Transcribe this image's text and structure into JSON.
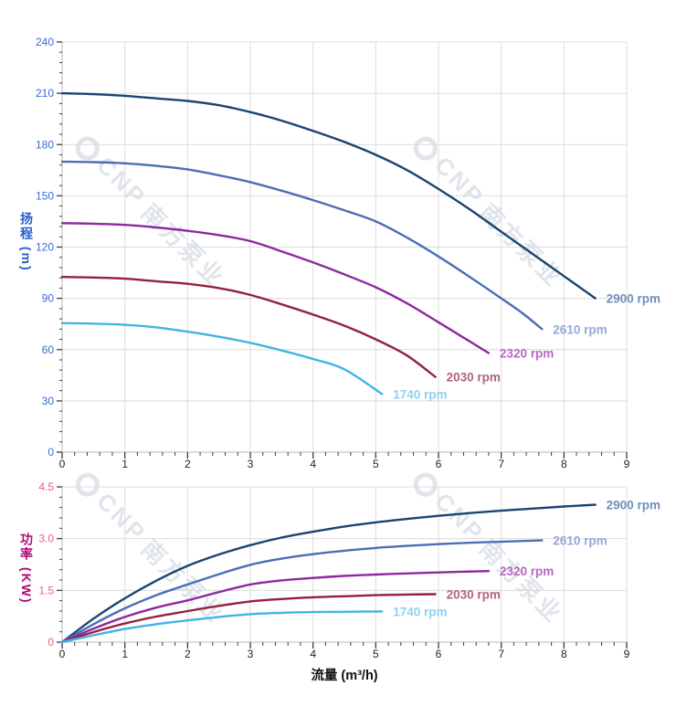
{
  "watermark": {
    "brand": "CNP",
    "brand_cn": "南方泵业",
    "color": "#c7d0dd"
  },
  "chart_data": [
    {
      "type": "line",
      "name": "head-flow-curve",
      "title": "",
      "xlabel": "",
      "ylabel": "扬程 (m)",
      "xlim": [
        0,
        9
      ],
      "ylim": [
        0,
        240
      ],
      "grid": true,
      "legend_position": "curve-end-labels",
      "x_tick_values": [
        0,
        1,
        2,
        3,
        4,
        5,
        6,
        7,
        8,
        9
      ],
      "x_tick_labels": [
        "0",
        "1",
        "2",
        "3",
        "4",
        "5",
        "6",
        "7",
        "8",
        "9"
      ],
      "y_tick_values": [
        0,
        30,
        60,
        90,
        120,
        150,
        180,
        210,
        240
      ],
      "y_tick_labels": [
        "0",
        "30",
        "60",
        "90",
        "120",
        "150",
        "180",
        "210",
        "240"
      ],
      "x_minor_step": 0.2,
      "y_minor_step": 6,
      "xtick_color": "#222222",
      "ytick_color": "#3d68d4",
      "ylabel_color": "#2b5ccc",
      "series": [
        {
          "name": "2900 rpm",
          "color": "#1a4570",
          "label_color": "#6f8fba",
          "points": [
            [
              0,
              210
            ],
            [
              0.5,
              209.5
            ],
            [
              1,
              208.5
            ],
            [
              1.5,
              207
            ],
            [
              2,
              205.5
            ],
            [
              2.5,
              203
            ],
            [
              3,
              199
            ],
            [
              3.5,
              194
            ],
            [
              4,
              188
            ],
            [
              4.5,
              181.5
            ],
            [
              5,
              174
            ],
            [
              5.5,
              165
            ],
            [
              6,
              154
            ],
            [
              6.5,
              142
            ],
            [
              7,
              129
            ],
            [
              7.5,
              116
            ],
            [
              8,
              103
            ],
            [
              8.5,
              90
            ]
          ]
        },
        {
          "name": "2610 rpm",
          "color": "#4b6eb5",
          "label_color": "#94a9d6",
          "points": [
            [
              0,
              170
            ],
            [
              0.5,
              169.7
            ],
            [
              1,
              169
            ],
            [
              1.5,
              167.5
            ],
            [
              2,
              165.5
            ],
            [
              2.5,
              162
            ],
            [
              3,
              158
            ],
            [
              3.5,
              153
            ],
            [
              4,
              147.5
            ],
            [
              4.5,
              141.5
            ],
            [
              5,
              135
            ],
            [
              5.5,
              125.5
            ],
            [
              6,
              114.5
            ],
            [
              6.5,
              102.5
            ],
            [
              7,
              90
            ],
            [
              7.35,
              81
            ],
            [
              7.65,
              72
            ]
          ]
        },
        {
          "name": "2320 rpm",
          "color": "#8f28a0",
          "label_color": "#b767c2",
          "points": [
            [
              0,
              134
            ],
            [
              0.5,
              133.7
            ],
            [
              1,
              133
            ],
            [
              1.5,
              131.5
            ],
            [
              2,
              129.5
            ],
            [
              2.5,
              127
            ],
            [
              3,
              123.5
            ],
            [
              3.5,
              117.5
            ],
            [
              4,
              111
            ],
            [
              4.5,
              104
            ],
            [
              5,
              96.5
            ],
            [
              5.5,
              87
            ],
            [
              6,
              76
            ],
            [
              6.4,
              67
            ],
            [
              6.8,
              58
            ]
          ]
        },
        {
          "name": "2030 rpm",
          "color": "#962040",
          "label_color": "#b16476",
          "points": [
            [
              0,
              102.5
            ],
            [
              0.5,
              102.2
            ],
            [
              1,
              101.5
            ],
            [
              1.5,
              100
            ],
            [
              2,
              98.5
            ],
            [
              2.5,
              96
            ],
            [
              3,
              92
            ],
            [
              3.5,
              86.5
            ],
            [
              4,
              80.5
            ],
            [
              4.5,
              74
            ],
            [
              5,
              66
            ],
            [
              5.5,
              56.5
            ],
            [
              5.95,
              44
            ]
          ]
        },
        {
          "name": "1740 rpm",
          "color": "#41b4e4",
          "label_color": "#8ed1f0",
          "points": [
            [
              0,
              75.5
            ],
            [
              0.5,
              75.2
            ],
            [
              1,
              74.5
            ],
            [
              1.5,
              73
            ],
            [
              2,
              70.5
            ],
            [
              2.5,
              67.5
            ],
            [
              3,
              64
            ],
            [
              3.5,
              59.5
            ],
            [
              4,
              54.5
            ],
            [
              4.5,
              48.5
            ],
            [
              5.1,
              34
            ]
          ]
        }
      ]
    },
    {
      "type": "line",
      "name": "power-flow-curve",
      "title": "",
      "xlabel": "流量 (m³/h)",
      "ylabel": "功率 (KW)",
      "xlim": [
        0,
        9
      ],
      "ylim": [
        0,
        4.5
      ],
      "grid": true,
      "legend_position": "curve-end-labels",
      "x_tick_values": [
        0,
        1,
        2,
        3,
        4,
        5,
        6,
        7,
        8,
        9
      ],
      "x_tick_labels": [
        "0",
        "1",
        "2",
        "3",
        "4",
        "5",
        "6",
        "7",
        "8",
        "9"
      ],
      "y_tick_values": [
        0,
        1.5,
        3.0,
        4.5
      ],
      "y_tick_labels": [
        "0",
        "1.5",
        "3.0",
        "4.5"
      ],
      "x_minor_step": 0.2,
      "y_minor_step": 0.3,
      "xtick_color": "#222222",
      "ytick_color": "#e75a8b",
      "ylabel_color": "#ad0c77",
      "xlabel_color": "#111111",
      "series": [
        {
          "name": "2900 rpm",
          "color": "#1a4570",
          "label_color": "#6f8fba",
          "points": [
            [
              0,
              0
            ],
            [
              0.5,
              0.68
            ],
            [
              1,
              1.27
            ],
            [
              1.5,
              1.78
            ],
            [
              2,
              2.21
            ],
            [
              2.5,
              2.54
            ],
            [
              3,
              2.81
            ],
            [
              3.5,
              3.03
            ],
            [
              4,
              3.2
            ],
            [
              4.5,
              3.35
            ],
            [
              5,
              3.47
            ],
            [
              5.5,
              3.57
            ],
            [
              6,
              3.66
            ],
            [
              6.5,
              3.74
            ],
            [
              7,
              3.81
            ],
            [
              7.5,
              3.87
            ],
            [
              8,
              3.93
            ],
            [
              8.5,
              3.98
            ]
          ]
        },
        {
          "name": "2610 rpm",
          "color": "#4b6eb5",
          "label_color": "#94a9d6",
          "points": [
            [
              0,
              0
            ],
            [
              0.5,
              0.52
            ],
            [
              1,
              0.98
            ],
            [
              1.5,
              1.36
            ],
            [
              2,
              1.67
            ],
            [
              2.5,
              1.97
            ],
            [
              3,
              2.24
            ],
            [
              3.5,
              2.42
            ],
            [
              4,
              2.55
            ],
            [
              4.5,
              2.65
            ],
            [
              5,
              2.73
            ],
            [
              5.5,
              2.79
            ],
            [
              6,
              2.84
            ],
            [
              6.5,
              2.88
            ],
            [
              7,
              2.91
            ],
            [
              7.65,
              2.95
            ]
          ]
        },
        {
          "name": "2320 rpm",
          "color": "#8f28a0",
          "label_color": "#b767c2",
          "points": [
            [
              0,
              0
            ],
            [
              0.5,
              0.39
            ],
            [
              1,
              0.73
            ],
            [
              1.5,
              1.0
            ],
            [
              2,
              1.21
            ],
            [
              2.5,
              1.45
            ],
            [
              3,
              1.67
            ],
            [
              3.5,
              1.79
            ],
            [
              4,
              1.86
            ],
            [
              4.5,
              1.92
            ],
            [
              5,
              1.96
            ],
            [
              5.5,
              1.99
            ],
            [
              6,
              2.02
            ],
            [
              6.8,
              2.06
            ]
          ]
        },
        {
          "name": "2030 rpm",
          "color": "#962040",
          "label_color": "#b16476",
          "points": [
            [
              0,
              0
            ],
            [
              0.5,
              0.29
            ],
            [
              1,
              0.54
            ],
            [
              1.5,
              0.74
            ],
            [
              2,
              0.9
            ],
            [
              2.5,
              1.05
            ],
            [
              3,
              1.18
            ],
            [
              3.5,
              1.25
            ],
            [
              4,
              1.3
            ],
            [
              4.5,
              1.33
            ],
            [
              5,
              1.36
            ],
            [
              5.5,
              1.38
            ],
            [
              5.95,
              1.39
            ]
          ]
        },
        {
          "name": "1740 rpm",
          "color": "#41b4e4",
          "label_color": "#8ed1f0",
          "points": [
            [
              0,
              0
            ],
            [
              0.5,
              0.2
            ],
            [
              1,
              0.38
            ],
            [
              1.5,
              0.52
            ],
            [
              2,
              0.63
            ],
            [
              2.5,
              0.73
            ],
            [
              3,
              0.81
            ],
            [
              3.5,
              0.85
            ],
            [
              4,
              0.87
            ],
            [
              4.5,
              0.88
            ],
            [
              5.1,
              0.89
            ]
          ]
        }
      ]
    }
  ],
  "style": {
    "grid_color": "#dcdcdc",
    "spine_color": "#c6c6c6",
    "tick_color": "#3c3c3c",
    "background": "#ffffff"
  }
}
